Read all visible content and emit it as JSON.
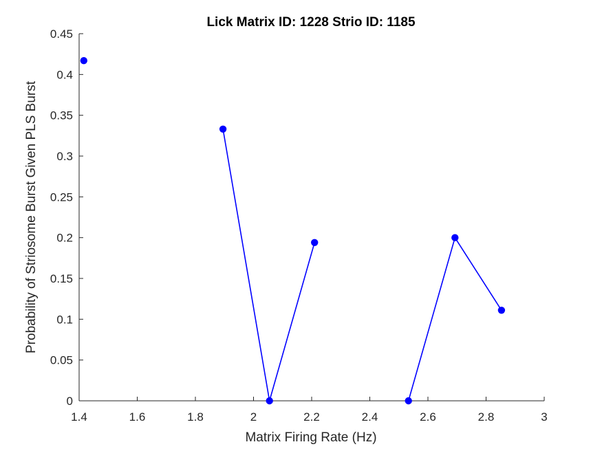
{
  "chart_data": {
    "type": "line",
    "title": "Lick Matrix ID: 1228 Strio ID: 1185",
    "xlabel": "Matrix Firing Rate (Hz)",
    "ylabel": "Probability of Striosome Burst Given PLS Burst",
    "xlim": [
      1.4,
      3.0
    ],
    "ylim": [
      0,
      0.45
    ],
    "xticks": [
      1.4,
      1.6,
      1.8,
      2.0,
      2.2,
      2.4,
      2.6,
      2.8,
      3.0
    ],
    "xtick_labels": [
      "1.4",
      "1.6",
      "1.8",
      "2",
      "2.2",
      "2.4",
      "2.6",
      "2.8",
      "3"
    ],
    "yticks": [
      0,
      0.05,
      0.1,
      0.15,
      0.2,
      0.25,
      0.3,
      0.35,
      0.4,
      0.45
    ],
    "ytick_labels": [
      "0",
      "0.05",
      "0.1",
      "0.15",
      "0.2",
      "0.25",
      "0.3",
      "0.35",
      "0.4",
      "0.45"
    ],
    "grid": false,
    "color": "#0000ff",
    "segments": [
      [
        {
          "x": 1.416,
          "y": 0.417
        }
      ],
      [
        {
          "x": 1.895,
          "y": 0.333
        },
        {
          "x": 2.055,
          "y": 0.0
        },
        {
          "x": 2.21,
          "y": 0.194
        }
      ],
      [
        {
          "x": 2.533,
          "y": 0.0
        },
        {
          "x": 2.693,
          "y": 0.2
        },
        {
          "x": 2.853,
          "y": 0.111
        }
      ]
    ]
  }
}
